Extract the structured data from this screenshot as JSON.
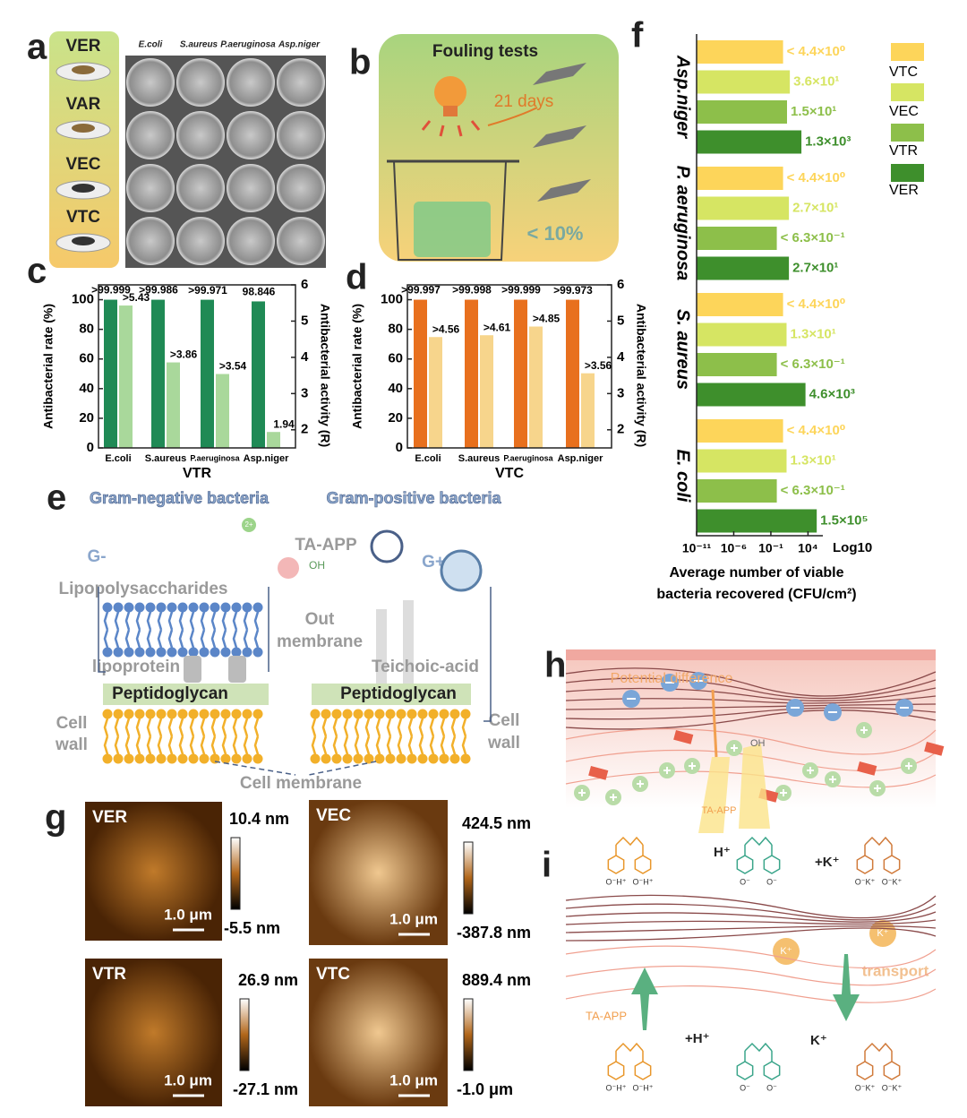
{
  "panel_labels": [
    "a",
    "b",
    "c",
    "d",
    "e",
    "f",
    "g",
    "h",
    "i"
  ],
  "panel_a": {
    "samples": [
      "VER",
      "VAR",
      "VEC",
      "VTC"
    ],
    "strains": [
      "E.coli",
      "S.aureus",
      "P.aeruginosa",
      "Asp.niger"
    ]
  },
  "panel_b": {
    "title": "Fouling tests",
    "duration": "21 days",
    "result": "< 10%"
  },
  "chart_data": [
    {
      "type": "dual_bar",
      "xlabel": "VTR",
      "ylabel": "Antibacterial rate (%)",
      "y2label": "Antibacterial activity (R)",
      "categories": [
        "E.coli",
        "S.aureus",
        "P.aeruginosa",
        "Asp.niger"
      ],
      "series": [
        {
          "color": "#1f8a55",
          "values": [
            99.999,
            99.986,
            99.971,
            98.846
          ],
          "value_labels": [
            ">99.999",
            ">99.986",
            ">99.971",
            "98.846"
          ]
        },
        {
          "color": "#a9d89b",
          "axis": "y2",
          "values": [
            5.43,
            3.86,
            3.54,
            1.94
          ],
          "value_labels": [
            ">5.43",
            ">3.86",
            ">3.54",
            "1.94"
          ]
        }
      ],
      "ylim": [
        0,
        110
      ],
      "yticks": [
        0,
        20,
        40,
        60,
        80,
        100
      ],
      "y2lim": [
        1.5,
        6
      ],
      "y2ticks": [
        2,
        3,
        4,
        5,
        6
      ]
    },
    {
      "type": "dual_bar",
      "xlabel": "VTC",
      "ylabel": "Antibacterial rate (%)",
      "y2label": "Antibacterial activity (R)",
      "categories": [
        "E.coli",
        "S.aureus",
        "P.aeruginosa",
        "Asp.niger"
      ],
      "series": [
        {
          "color": "#e8701e",
          "values": [
            99.997,
            99.998,
            99.999,
            99.973
          ],
          "value_labels": [
            ">99.997",
            ">99.998",
            ">99.999",
            ">99.973"
          ]
        },
        {
          "color": "#f7d58c",
          "axis": "y2",
          "values": [
            4.56,
            4.61,
            4.85,
            3.56
          ],
          "value_labels": [
            ">4.56",
            ">4.61",
            ">4.85",
            ">3.56"
          ]
        }
      ],
      "ylim": [
        0,
        110
      ],
      "yticks": [
        0,
        20,
        40,
        60,
        80,
        100
      ],
      "y2lim": [
        1.5,
        6
      ],
      "y2ticks": [
        2,
        3,
        4,
        5,
        6
      ]
    },
    {
      "type": "grouped_hbar",
      "log_scale": true,
      "xlabel": [
        "Average number of viable",
        "bacteria recovered (CFU/cm²)"
      ],
      "xunit": "Log10",
      "categories": [
        "Asp.niger",
        "P. aeruginosa",
        "S. aureus",
        "E. coli"
      ],
      "series": [
        {
          "name": "VTC",
          "color": "#fdd55a",
          "values": [
            4.4,
            4.4,
            4.4,
            4.4
          ],
          "value_labels": [
            "< 4.4×10⁰",
            "< 4.4×10⁰",
            "< 4.4×10⁰",
            "< 4.4×10⁰"
          ]
        },
        {
          "name": "VEC",
          "color": "#d6e563",
          "values": [
            36,
            27,
            13,
            13
          ],
          "value_labels": [
            "3.6×10¹",
            "2.7×10¹",
            "1.3×10¹",
            "1.3×10¹"
          ]
        },
        {
          "name": "VTR",
          "color": "#8dbf4a",
          "values": [
            15,
            0.63,
            0.63,
            0.63
          ],
          "value_labels": [
            "1.5×10¹",
            "< 6.3×10⁻¹",
            "< 6.3×10⁻¹",
            "< 6.3×10⁻¹"
          ]
        },
        {
          "name": "VER",
          "color": "#3e8f2c",
          "values": [
            1300,
            27,
            4600,
            150000
          ],
          "value_labels": [
            "1.3×10³",
            "2.7×10¹",
            "4.6×10³",
            "1.5×10⁵"
          ]
        }
      ],
      "xlim": [
        1e-11,
        1000000.0
      ],
      "xticks": [
        {
          "value": 1e-11,
          "label": "10⁻¹¹"
        },
        {
          "value": 1e-06,
          "label": "10⁻⁶"
        },
        {
          "value": 0.1,
          "label": "10⁻¹"
        },
        {
          "value": 10000,
          "label": "10⁴"
        }
      ],
      "legend": "right"
    }
  ],
  "panel_e": {
    "gram_negative": "Gram-negative bacteria",
    "gram_positive": "Gram-positive bacteria",
    "g_minus": "G-",
    "g_plus": "G+",
    "agent": "TA-APP",
    "oh": "OH",
    "charge": "2+",
    "lps": "Lipopolysaccharides",
    "out_membrane": [
      "Out",
      "membrane"
    ],
    "lipoprotein": "lipoprotein",
    "teichoic": "Teichoic-acid",
    "peptidoglycan": [
      "Peptidoglycan",
      "Peptidoglycan"
    ],
    "cell_wall": [
      "Cell",
      "wall"
    ],
    "cell_membrane": "Cell membrane"
  },
  "panel_g": {
    "images": [
      {
        "name": "VER",
        "max": "10.4 nm",
        "min": "-5.5 nm"
      },
      {
        "name": "VEC",
        "max": "424.5 nm",
        "min": "-387.8 nm"
      },
      {
        "name": "VTR",
        "max": "26.9 nm",
        "min": "-27.1 nm"
      },
      {
        "name": "VTC",
        "max": "889.4 nm",
        "min": "-1.0 μm"
      }
    ],
    "scale": "1.0 μm"
  },
  "panel_h": {
    "label": "Potential difference",
    "agent": "TA-APP",
    "oh": "OH"
  },
  "panel_i": {
    "h_in": "H⁺",
    "k_in": "+K⁺",
    "transport": "transport",
    "agent": "TA-APP",
    "h_out": "+H⁺",
    "k_out": "K⁺",
    "k_ion": "K⁺",
    "groups": [
      "O⁻H⁺",
      "O⁻",
      "O⁻K⁺"
    ]
  }
}
